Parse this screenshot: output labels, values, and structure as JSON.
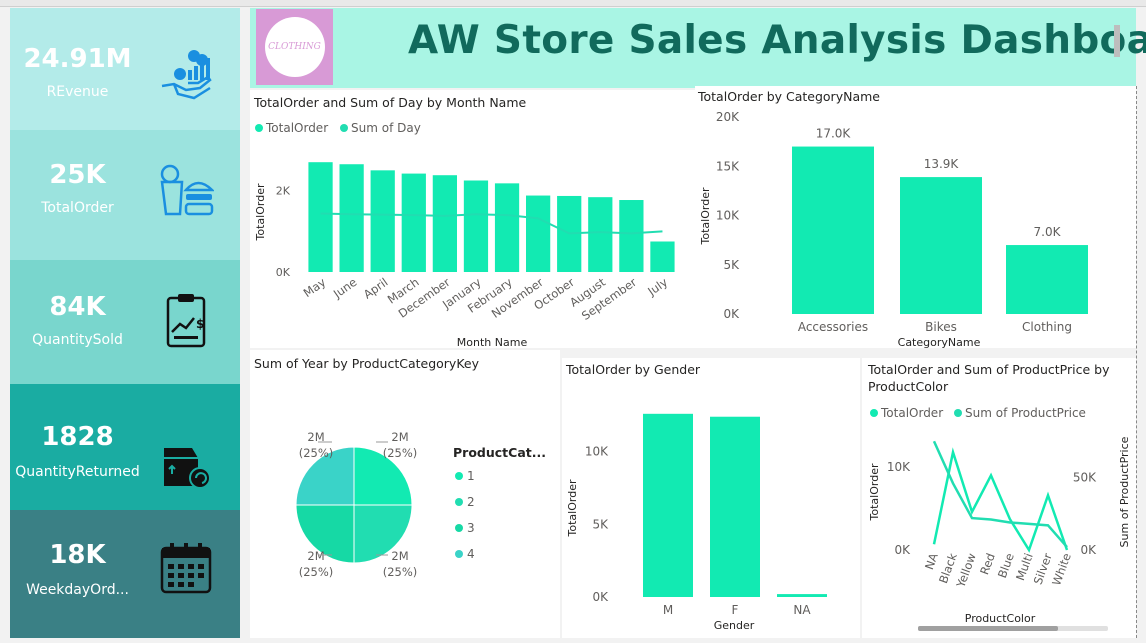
{
  "header": {
    "title": "AW Store Sales Analysis Dashboard",
    "logo_text": "CLOTHING"
  },
  "kpis": [
    {
      "value": "24.91M",
      "label": "REvenue",
      "icon": "revenue-hand-coins-icon",
      "bg": "#b3ebe9"
    },
    {
      "value": "25K",
      "label": "TotalOrder",
      "icon": "food-order-icon",
      "bg": "#9be3de"
    },
    {
      "value": "84K",
      "label": "QuantitySold",
      "icon": "clipboard-chart-icon",
      "bg": "#79d6cd"
    },
    {
      "value": "1828",
      "label": "QuantityReturned",
      "icon": "box-return-icon",
      "bg": "#1aaca2"
    },
    {
      "value": "18K",
      "label": "WeekdayOrd...",
      "icon": "calendar-icon",
      "bg": "#3a8085"
    }
  ],
  "month_chart": {
    "title": "TotalOrder and Sum of Day by Month Name",
    "legend": [
      "TotalOrder",
      "Sum of Day"
    ],
    "ylabel": "TotalOrder",
    "xlabel": "Month Name",
    "yticks": [
      "0K",
      "2K"
    ]
  },
  "category_chart": {
    "title": "TotalOrder by CategoryName",
    "ylabel": "TotalOrder",
    "xlabel": "CategoryName",
    "yticks": [
      "0K",
      "5K",
      "10K",
      "15K",
      "20K"
    ],
    "data_labels": [
      "17.0K",
      "13.9K",
      "7.0K"
    ]
  },
  "pie_chart": {
    "title": "Sum of Year by ProductCategoryKey",
    "legend_title": "ProductCat...",
    "legend": [
      "1",
      "2",
      "3",
      "4"
    ],
    "slice_labels": [
      "2M",
      "2M",
      "2M",
      "2M"
    ],
    "slice_pcts": [
      "(25%)",
      "(25%)",
      "(25%)",
      "(25%)"
    ]
  },
  "gender_chart": {
    "title": "TotalOrder by Gender",
    "ylabel": "TotalOrder",
    "xlabel": "Gender",
    "yticks": [
      "0K",
      "5K",
      "10K"
    ]
  },
  "color_chart": {
    "title_line1": "TotalOrder and Sum of ProductPrice by",
    "title_line2": "ProductColor",
    "legend": [
      "TotalOrder",
      "Sum of ProductPrice"
    ],
    "ylabel": "TotalOrder",
    "ylabel2": "Sum of ProductPrice",
    "xlabel": "ProductColor",
    "yticks": [
      "0K",
      "10K"
    ],
    "y2ticks": [
      "0K",
      "50K"
    ]
  },
  "chart_data": [
    {
      "type": "bar",
      "title": "TotalOrder and Sum of Day by Month Name",
      "xlabel": "Month Name",
      "ylabel": "TotalOrder",
      "categories": [
        "May",
        "June",
        "April",
        "March",
        "December",
        "January",
        "February",
        "November",
        "October",
        "August",
        "September",
        "July"
      ],
      "series": [
        {
          "name": "TotalOrder",
          "values": [
            2700,
            2650,
            2500,
            2420,
            2380,
            2250,
            2180,
            1880,
            1870,
            1840,
            1770,
            750
          ]
        },
        {
          "name": "Sum of Day",
          "values": [
            1440,
            1420,
            1410,
            1400,
            1380,
            1420,
            1400,
            1320,
            950,
            980,
            950,
            1000
          ]
        }
      ],
      "ylim": [
        0,
        3000
      ]
    },
    {
      "type": "bar",
      "title": "TotalOrder by CategoryName",
      "xlabel": "CategoryName",
      "ylabel": "TotalOrder",
      "categories": [
        "Accessories",
        "Bikes",
        "Clothing"
      ],
      "values": [
        17000,
        13900,
        7000
      ],
      "ylim": [
        0,
        20000
      ]
    },
    {
      "type": "pie",
      "title": "Sum of Year by ProductCategoryKey",
      "categories": [
        "1",
        "2",
        "3",
        "4"
      ],
      "values": [
        25,
        25,
        25,
        25
      ]
    },
    {
      "type": "bar",
      "title": "TotalOrder by Gender",
      "xlabel": "Gender",
      "ylabel": "TotalOrder",
      "categories": [
        "M",
        "F",
        "NA"
      ],
      "values": [
        12600,
        12400,
        200
      ],
      "ylim": [
        0,
        13000
      ]
    },
    {
      "type": "line",
      "title": "TotalOrder and Sum of ProductPrice by ProductColor",
      "xlabel": "ProductColor",
      "categories": [
        "NA",
        "Black",
        "Yellow",
        "Red",
        "Blue",
        "Multi",
        "Silver",
        "White"
      ],
      "series": [
        {
          "name": "TotalOrder",
          "values": [
            700,
            11800,
            4600,
            9000,
            3700,
            0,
            6600,
            0
          ]
        },
        {
          "name": "Sum of ProductPrice",
          "values": [
            75000,
            46000,
            22000,
            21000,
            19000,
            18000,
            17000,
            2000
          ]
        }
      ]
    }
  ],
  "colors": {
    "bar": "#12eab2",
    "line": "#21ddb1",
    "title": "#116a5c",
    "header": "#a9f5e4"
  }
}
